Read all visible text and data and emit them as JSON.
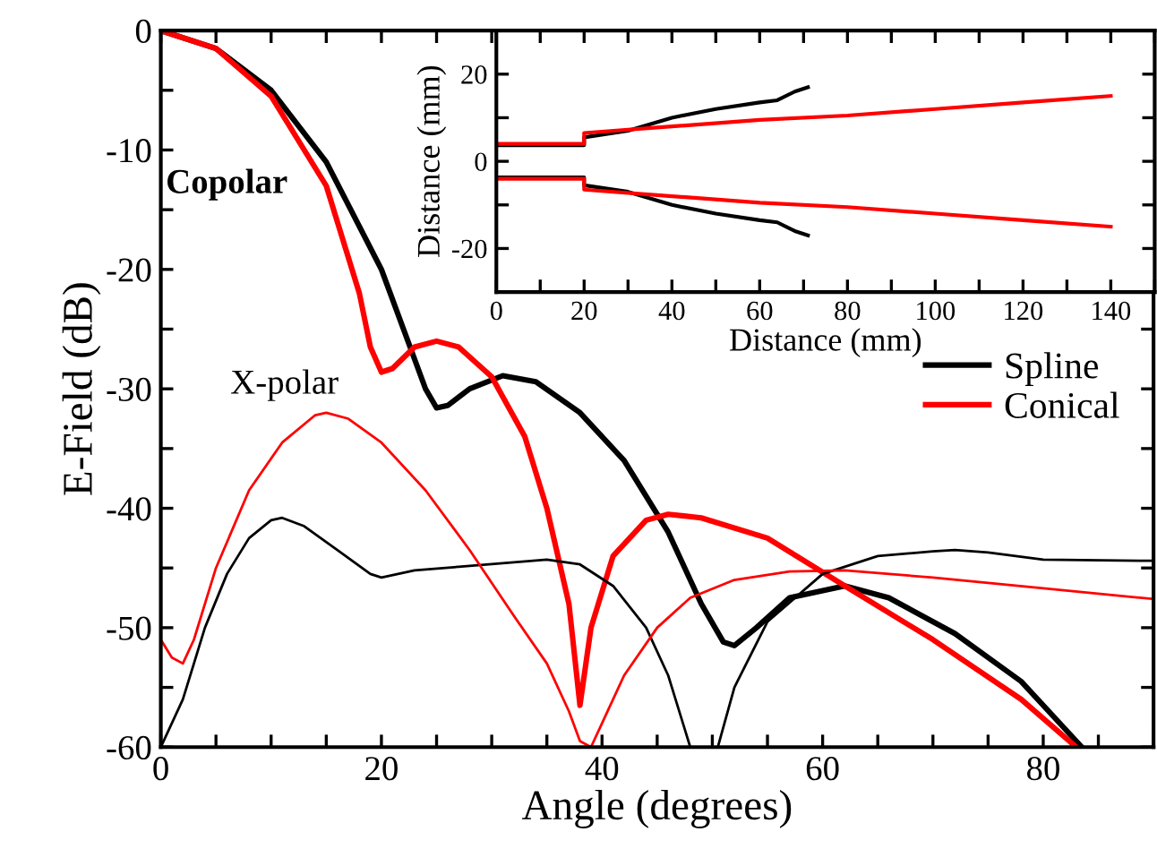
{
  "chart_data": [
    {
      "type": "line",
      "xlabel": "Angle (degrees)",
      "ylabel": "E-Field (dB)",
      "xlim": [
        0,
        90
      ],
      "ylim": [
        -60,
        0
      ],
      "xticks": [
        0,
        {
          "value": 5,
          "label": null
        },
        {
          "value": 10,
          "label": null
        },
        {
          "value": 15,
          "label": null
        },
        20,
        {
          "value": 25,
          "label": null
        },
        {
          "value": 30,
          "label": null
        },
        {
          "value": 35,
          "label": null
        },
        40,
        {
          "value": 45,
          "label": null
        },
        {
          "value": 50,
          "label": null
        },
        {
          "value": 55,
          "label": null
        },
        60,
        {
          "value": 65,
          "label": null
        },
        {
          "value": 70,
          "label": null
        },
        {
          "value": 75,
          "label": null
        },
        80,
        {
          "value": 85,
          "label": null
        },
        {
          "value": 90,
          "label": null
        }
      ],
      "yticks": [
        -60,
        {
          "value": -55,
          "label": null
        },
        -50,
        {
          "value": -45,
          "label": null
        },
        -40,
        {
          "value": -35,
          "label": null
        },
        -30,
        {
          "value": -25,
          "label": null
        },
        -20,
        {
          "value": -15,
          "label": null
        },
        -10,
        {
          "value": -5,
          "label": null
        },
        0
      ],
      "legend": "center right",
      "annotations": [
        "Copolar",
        "X-polar"
      ],
      "series": [
        {
          "name": "Spline",
          "color": "#000000",
          "x": [
            0,
            5,
            10,
            15,
            20,
            22,
            24,
            25,
            26,
            28,
            31,
            34,
            38,
            42,
            46,
            49,
            51,
            52,
            54,
            57,
            62,
            66,
            72,
            78,
            82,
            83.5
          ],
          "values": [
            0,
            -1.5,
            -5,
            -11,
            -20,
            -25,
            -30,
            -31.6,
            -31.4,
            -30,
            -28.9,
            -29.4,
            -32,
            -36,
            -42,
            -48,
            -51.2,
            -51.5,
            -50,
            -47.5,
            -46.5,
            -47.5,
            -50.5,
            -54.5,
            -58.5,
            -60
          ]
        },
        {
          "name": "Conical",
          "color": "#ff0000",
          "x": [
            0,
            5,
            10,
            15,
            18,
            19,
            20,
            21,
            23,
            25,
            27,
            30,
            33,
            35,
            37,
            38,
            39,
            41,
            44,
            46,
            49,
            55,
            62,
            70,
            78,
            83
          ],
          "values": [
            0,
            -1.5,
            -5.5,
            -13,
            -22,
            -26.5,
            -28.6,
            -28.3,
            -26.5,
            -26,
            -26.5,
            -29,
            -34,
            -40,
            -48,
            -56.5,
            -50,
            -44,
            -41,
            -40.5,
            -40.8,
            -42.5,
            -46.5,
            -51,
            -56,
            -60
          ]
        },
        {
          "color": "#000000",
          "x": [
            0,
            2,
            4,
            6,
            8,
            10,
            11,
            13,
            16,
            19,
            20,
            23,
            27,
            31,
            35,
            38,
            41,
            44,
            46,
            48,
            49,
            50.5,
            52,
            55,
            60,
            65,
            70,
            72,
            75,
            80,
            90
          ],
          "values": [
            -60,
            -56,
            -50,
            -45.5,
            -42.5,
            -41,
            -40.8,
            -41.5,
            -43.5,
            -45.5,
            -45.8,
            -45.2,
            -44.9,
            -44.6,
            -44.3,
            -44.7,
            -46.5,
            -50,
            -54,
            -60,
            null,
            -60,
            -55,
            -49.5,
            -45.5,
            -44,
            -43.6,
            -43.5,
            -43.7,
            -44.3,
            -44.4
          ]
        },
        {
          "color": "#ff0000",
          "x": [
            0,
            1,
            2,
            3,
            5,
            8,
            11,
            14,
            15,
            17,
            20,
            24,
            28,
            32,
            35,
            37,
            38,
            39,
            40,
            42,
            45,
            48,
            52,
            57,
            62,
            70,
            80,
            90
          ],
          "values": [
            -51,
            -52.5,
            -53,
            -51,
            -45,
            -38.5,
            -34.5,
            -32.2,
            -32,
            -32.5,
            -34.5,
            -38.5,
            -43.5,
            -49,
            -53,
            -57,
            -59.5,
            -60,
            -58,
            -54,
            -50,
            -47.5,
            -46,
            -45.3,
            -45.2,
            -45.8,
            -46.7,
            -47.6
          ]
        }
      ]
    },
    {
      "type": "line",
      "xlabel": "Distance (mm)",
      "ylabel": "Distance (mm)",
      "xlim": [
        0,
        150
      ],
      "ylim": [
        -30,
        30
      ],
      "xticks": [
        0,
        {
          "value": 10,
          "label": null
        },
        20,
        {
          "value": 30,
          "label": null
        },
        40,
        {
          "value": 50,
          "label": null
        },
        60,
        {
          "value": 70,
          "label": null
        },
        80,
        {
          "value": 90,
          "label": null
        },
        100,
        {
          "value": 110,
          "label": null
        },
        120,
        {
          "value": 130,
          "label": null
        },
        140,
        {
          "value": 150,
          "label": null
        }
      ],
      "yticks": [
        {
          "value": -30,
          "label": null
        },
        -20,
        {
          "value": -10,
          "label": null
        },
        0,
        {
          "value": 10,
          "label": null
        },
        20,
        {
          "value": 30,
          "label": null
        }
      ],
      "series": [
        {
          "color": "#000000",
          "x": [
            0,
            20,
            20,
            30,
            40,
            50,
            60,
            64,
            68,
            71
          ],
          "values": [
            3.7,
            3.7,
            5.5,
            7,
            10,
            12,
            13.5,
            14,
            16,
            17
          ]
        },
        {
          "color": "#000000",
          "x": [
            0,
            20,
            20,
            30,
            40,
            50,
            60,
            64,
            68,
            71
          ],
          "values": [
            -3.7,
            -3.7,
            -5.5,
            -7,
            -10,
            -12,
            -13.5,
            -14,
            -16,
            -17
          ]
        },
        {
          "color": "#ff0000",
          "x": [
            0,
            20,
            20,
            40,
            60,
            80,
            100,
            120,
            140
          ],
          "values": [
            4,
            4,
            6.5,
            8,
            9.5,
            10.5,
            12,
            13.5,
            15
          ]
        },
        {
          "color": "#ff0000",
          "x": [
            0,
            20,
            20,
            40,
            60,
            80,
            100,
            120,
            140
          ],
          "values": [
            -4,
            -4,
            -6.5,
            -8,
            -9.5,
            -10.5,
            -12,
            -13.5,
            -15
          ]
        }
      ]
    }
  ]
}
